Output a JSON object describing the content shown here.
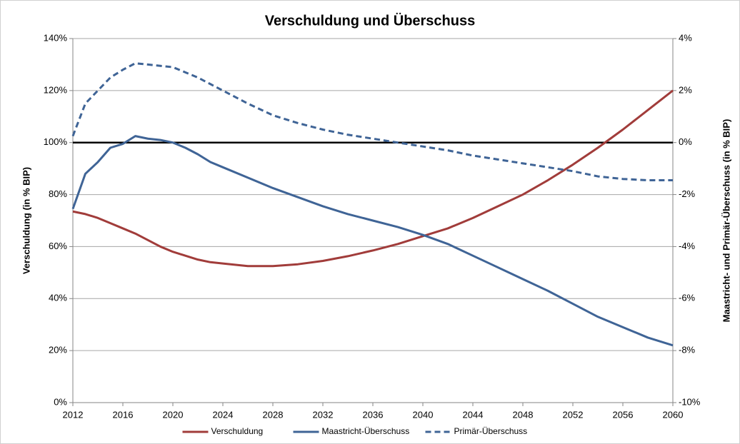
{
  "chart_data": {
    "type": "line",
    "title": "Verschuldung und Überschuss",
    "y_label": "Verschuldung (in % BIP)",
    "y2_label": "Maastricht- und Primär-Überschuss (in % BIP)",
    "x": [
      2012,
      2013,
      2014,
      2015,
      2016,
      2017,
      2018,
      2019,
      2020,
      2021,
      2022,
      2023,
      2024,
      2026,
      2028,
      2030,
      2032,
      2034,
      2036,
      2038,
      2040,
      2042,
      2044,
      2046,
      2048,
      2050,
      2052,
      2054,
      2056,
      2058,
      2060
    ],
    "series": [
      {
        "name": "Verschuldung",
        "color": "#a13c3a",
        "dash": false,
        "values": [
          73.5,
          72.5,
          71,
          69,
          67,
          65,
          62.5,
          60,
          58,
          56.5,
          55,
          54,
          53.5,
          52.5,
          52.5,
          53.2,
          54.5,
          56.3,
          58.5,
          61,
          64,
          67,
          71,
          75.5,
          80,
          85.5,
          91.5,
          98,
          105,
          112.5,
          120
        ]
      },
      {
        "name": "Maastricht-Überschuss",
        "color": "#3f6496",
        "dash": false,
        "axis": "y2",
        "values": [
          -2.55,
          -1.2,
          -0.75,
          -0.2,
          -0.05,
          0.25,
          0.15,
          0.1,
          0,
          -0.2,
          -0.45,
          -0.75,
          -0.95,
          -1.35,
          -1.75,
          -2.1,
          -2.45,
          -2.75,
          -3.0,
          -3.25,
          -3.55,
          -3.9,
          -4.35,
          -4.8,
          -5.25,
          -5.7,
          -6.2,
          -6.7,
          -7.1,
          -7.5,
          -7.8
        ]
      },
      {
        "name": "Primär-Überschuss",
        "color": "#3f6496",
        "dash": true,
        "axis": "y2",
        "values": [
          0.25,
          1.5,
          2.0,
          2.5,
          2.8,
          3.05,
          3.0,
          2.95,
          2.9,
          2.7,
          2.5,
          2.25,
          2.0,
          1.5,
          1.05,
          0.75,
          0.5,
          0.3,
          0.15,
          0,
          -0.15,
          -0.3,
          -0.5,
          -0.65,
          -0.8,
          -0.95,
          -1.1,
          -1.3,
          -1.4,
          -1.45,
          -1.45
        ]
      }
    ],
    "xlim": [
      2012,
      2060
    ],
    "xticks": [
      2012,
      2016,
      2020,
      2024,
      2028,
      2032,
      2036,
      2040,
      2044,
      2048,
      2052,
      2056,
      2060
    ],
    "ylim": [
      0,
      140
    ],
    "yticks": [
      {
        "value": 0,
        "label": "0%"
      },
      {
        "value": 20,
        "label": "20%"
      },
      {
        "value": 40,
        "label": "40%"
      },
      {
        "value": 60,
        "label": "60%"
      },
      {
        "value": 80,
        "label": "80%"
      },
      {
        "value": 100,
        "label": "100%"
      },
      {
        "value": 120,
        "label": "120%"
      },
      {
        "value": 140,
        "label": "140%"
      }
    ],
    "y2lim": [
      -10,
      4
    ],
    "y2ticks": [
      {
        "value": -10,
        "label": "-10%"
      },
      {
        "value": -8,
        "label": "-8%"
      },
      {
        "value": -6,
        "label": "-6%"
      },
      {
        "value": -4,
        "label": "-4%"
      },
      {
        "value": -2,
        "label": "-2%"
      },
      {
        "value": 0,
        "label": "0%"
      },
      {
        "value": 2,
        "label": "2%"
      },
      {
        "value": 4,
        "label": "4%"
      }
    ],
    "grid": true,
    "zero_line": true,
    "legend": "bottom"
  }
}
